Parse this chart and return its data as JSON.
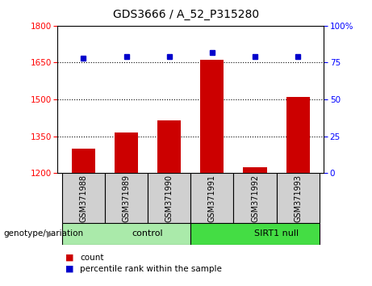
{
  "title": "GDS3666 / A_52_P315280",
  "samples": [
    "GSM371988",
    "GSM371989",
    "GSM371990",
    "GSM371991",
    "GSM371992",
    "GSM371993"
  ],
  "counts": [
    1300,
    1365,
    1415,
    1660,
    1225,
    1510
  ],
  "percentiles": [
    78,
    79,
    79,
    82,
    79,
    79
  ],
  "ylim_left": [
    1200,
    1800
  ],
  "ylim_right": [
    0,
    100
  ],
  "yticks_left": [
    1200,
    1350,
    1500,
    1650,
    1800
  ],
  "yticks_right": [
    0,
    25,
    50,
    75,
    100
  ],
  "hlines": [
    1650,
    1500,
    1350
  ],
  "bar_color": "#cc0000",
  "dot_color": "#0000cc",
  "groups": [
    {
      "label": "control",
      "start": 0,
      "end": 3,
      "color": "#aaeaaa"
    },
    {
      "label": "SIRT1 null",
      "start": 3,
      "end": 6,
      "color": "#44dd44"
    }
  ],
  "legend_items": [
    {
      "label": "count",
      "color": "#cc0000"
    },
    {
      "label": "percentile rank within the sample",
      "color": "#0000cc"
    }
  ],
  "genotype_label": "genotype/variation",
  "bg_gray": "#d0d0d0"
}
